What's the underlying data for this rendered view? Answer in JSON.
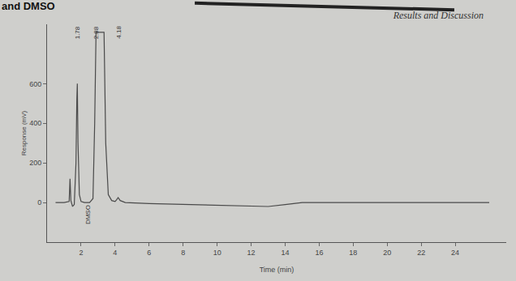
{
  "page": {
    "caption": "and DMSO",
    "header": "Results and Discussion"
  },
  "chart_data": {
    "type": "line",
    "x_label": "Time (min)",
    "y_label": "Response (mV)",
    "x": [
      0.5,
      1.0,
      1.3,
      1.35,
      1.4,
      1.5,
      1.6,
      1.7,
      1.75,
      1.78,
      1.82,
      1.9,
      2.0,
      2.2,
      2.5,
      2.7,
      2.8,
      2.85,
      2.88,
      3.0,
      3.2,
      3.35,
      3.45,
      3.6,
      3.8,
      4.0,
      4.1,
      4.18,
      4.3,
      4.6,
      6,
      8,
      10,
      12,
      13,
      14,
      15,
      16,
      18,
      20,
      22,
      24,
      26
    ],
    "values": [
      0,
      0,
      5,
      120,
      10,
      -20,
      -10,
      200,
      520,
      600,
      300,
      40,
      5,
      0,
      0,
      20,
      400,
      850,
      860,
      860,
      860,
      860,
      300,
      40,
      10,
      5,
      15,
      25,
      10,
      0,
      -5,
      -10,
      -15,
      -20,
      -20,
      -10,
      0,
      0,
      0,
      0,
      0,
      0,
      0
    ],
    "color": "#4a4a4a",
    "xlim": [
      0,
      27
    ],
    "xticks": [
      2,
      4,
      6,
      8,
      10,
      12,
      14,
      16,
      18,
      20,
      22,
      24
    ],
    "ylim": [
      -200,
      900
    ],
    "yticks": [
      0,
      200,
      400,
      600
    ],
    "grid": false,
    "annotations": [
      {
        "x": 1.78,
        "text": "1.78"
      },
      {
        "x": 2.88,
        "text": "2.88"
      },
      {
        "x": 4.18,
        "text": "4.18"
      },
      {
        "x": 2.4,
        "y": -60,
        "text": "DMSO"
      }
    ]
  }
}
